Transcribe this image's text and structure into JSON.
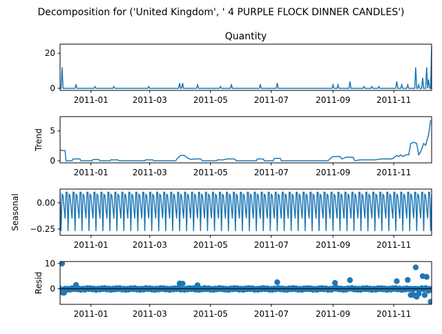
{
  "figure_title": "Decomposition for ('United Kingdom', ' 4 PURPLE FLOCK DINNER CANDLES')",
  "colors": {
    "line": "#1f77b4",
    "axis": "#000000"
  },
  "x_ticks": [
    "2011-01",
    "2011-03",
    "2011-05",
    "2011-07",
    "2011-09",
    "2011-11"
  ],
  "chart_data": [
    {
      "type": "line",
      "title": "Quantity",
      "ylabel": "",
      "xlim": [
        "2010-12-01",
        "2011-12-09"
      ],
      "ylim": [
        -1.2,
        25.2
      ],
      "yticks": [
        0,
        20
      ],
      "ytick_labels": [
        "0",
        "20"
      ],
      "baseline": 0,
      "spikes": [
        {
          "x": "2010-12-03",
          "y": 12
        },
        {
          "x": "2010-12-17",
          "y": 2
        },
        {
          "x": "2011-01-05",
          "y": 1
        },
        {
          "x": "2011-01-24",
          "y": 1
        },
        {
          "x": "2011-02-28",
          "y": 1
        },
        {
          "x": "2011-03-31",
          "y": 3
        },
        {
          "x": "2011-04-03",
          "y": 3
        },
        {
          "x": "2011-04-18",
          "y": 2
        },
        {
          "x": "2011-05-11",
          "y": 1
        },
        {
          "x": "2011-05-22",
          "y": 2
        },
        {
          "x": "2011-06-20",
          "y": 2
        },
        {
          "x": "2011-07-07",
          "y": 3
        },
        {
          "x": "2011-09-01",
          "y": 2
        },
        {
          "x": "2011-09-06",
          "y": 2
        },
        {
          "x": "2011-09-18",
          "y": 4
        },
        {
          "x": "2011-10-02",
          "y": 1
        },
        {
          "x": "2011-10-10",
          "y": 1
        },
        {
          "x": "2011-10-17",
          "y": 1
        },
        {
          "x": "2011-11-04",
          "y": 4
        },
        {
          "x": "2011-11-09",
          "y": 2
        },
        {
          "x": "2011-11-15",
          "y": 2
        },
        {
          "x": "2011-11-23",
          "y": 12
        },
        {
          "x": "2011-11-26",
          "y": 2
        },
        {
          "x": "2011-11-30",
          "y": 6
        },
        {
          "x": "2011-12-04",
          "y": 12
        },
        {
          "x": "2011-12-06",
          "y": 5
        },
        {
          "x": "2011-12-09",
          "y": 24
        }
      ]
    },
    {
      "type": "line",
      "title": "",
      "ylabel": "Trend",
      "xlim": [
        "2010-12-01",
        "2011-12-09"
      ],
      "ylim": [
        -0.35,
        7.4
      ],
      "yticks": [
        0,
        5
      ],
      "ytick_labels": [
        "0",
        "5"
      ],
      "points": [
        {
          "x": "2010-12-01",
          "y": 1.9
        },
        {
          "x": "2010-12-03",
          "y": 1.7
        },
        {
          "x": "2010-12-06",
          "y": 1.7
        },
        {
          "x": "2010-12-07",
          "y": 0.0
        },
        {
          "x": "2010-12-13",
          "y": 0.0
        },
        {
          "x": "2010-12-14",
          "y": 0.3
        },
        {
          "x": "2010-12-21",
          "y": 0.3
        },
        {
          "x": "2010-12-22",
          "y": 0.0
        },
        {
          "x": "2011-01-02",
          "y": 0.0
        },
        {
          "x": "2011-01-03",
          "y": 0.2
        },
        {
          "x": "2011-01-09",
          "y": 0.2
        },
        {
          "x": "2011-01-10",
          "y": 0.0
        },
        {
          "x": "2011-01-20",
          "y": 0.0
        },
        {
          "x": "2011-01-21",
          "y": 0.15
        },
        {
          "x": "2011-01-28",
          "y": 0.15
        },
        {
          "x": "2011-01-29",
          "y": 0.0
        },
        {
          "x": "2011-02-24",
          "y": 0.0
        },
        {
          "x": "2011-02-25",
          "y": 0.15
        },
        {
          "x": "2011-03-04",
          "y": 0.15
        },
        {
          "x": "2011-03-05",
          "y": 0.0
        },
        {
          "x": "2011-03-27",
          "y": 0.0
        },
        {
          "x": "2011-03-29",
          "y": 0.45
        },
        {
          "x": "2011-04-01",
          "y": 0.9
        },
        {
          "x": "2011-04-05",
          "y": 0.9
        },
        {
          "x": "2011-04-08",
          "y": 0.45
        },
        {
          "x": "2011-04-12",
          "y": 0.2
        },
        {
          "x": "2011-04-14",
          "y": 0.3
        },
        {
          "x": "2011-04-21",
          "y": 0.3
        },
        {
          "x": "2011-04-23",
          "y": 0.0
        },
        {
          "x": "2011-05-07",
          "y": 0.0
        },
        {
          "x": "2011-05-08",
          "y": 0.15
        },
        {
          "x": "2011-05-14",
          "y": 0.15
        },
        {
          "x": "2011-05-17",
          "y": 0.3
        },
        {
          "x": "2011-05-25",
          "y": 0.3
        },
        {
          "x": "2011-05-27",
          "y": 0.0
        },
        {
          "x": "2011-06-16",
          "y": 0.0
        },
        {
          "x": "2011-06-17",
          "y": 0.3
        },
        {
          "x": "2011-06-23",
          "y": 0.3
        },
        {
          "x": "2011-06-24",
          "y": 0.0
        },
        {
          "x": "2011-07-03",
          "y": 0.0
        },
        {
          "x": "2011-07-04",
          "y": 0.4
        },
        {
          "x": "2011-07-10",
          "y": 0.4
        },
        {
          "x": "2011-07-11",
          "y": 0.0
        },
        {
          "x": "2011-08-27",
          "y": 0.0
        },
        {
          "x": "2011-08-29",
          "y": 0.35
        },
        {
          "x": "2011-09-01",
          "y": 0.7
        },
        {
          "x": "2011-09-08",
          "y": 0.7
        },
        {
          "x": "2011-09-10",
          "y": 0.3
        },
        {
          "x": "2011-09-14",
          "y": 0.6
        },
        {
          "x": "2011-09-21",
          "y": 0.6
        },
        {
          "x": "2011-09-23",
          "y": 0.0
        },
        {
          "x": "2011-09-28",
          "y": 0.15
        },
        {
          "x": "2011-10-13",
          "y": 0.15
        },
        {
          "x": "2011-10-19",
          "y": 0.3
        },
        {
          "x": "2011-10-30",
          "y": 0.3
        },
        {
          "x": "2011-11-01",
          "y": 0.5
        },
        {
          "x": "2011-11-04",
          "y": 0.9
        },
        {
          "x": "2011-11-06",
          "y": 0.7
        },
        {
          "x": "2011-11-08",
          "y": 1.0
        },
        {
          "x": "2011-11-10",
          "y": 0.7
        },
        {
          "x": "2011-11-13",
          "y": 1.0
        },
        {
          "x": "2011-11-16",
          "y": 1.0
        },
        {
          "x": "2011-11-18",
          "y": 2.9
        },
        {
          "x": "2011-11-21",
          "y": 3.1
        },
        {
          "x": "2011-11-24",
          "y": 2.9
        },
        {
          "x": "2011-11-26",
          "y": 1.0
        },
        {
          "x": "2011-11-28",
          "y": 1.5
        },
        {
          "x": "2011-12-01",
          "y": 2.9
        },
        {
          "x": "2011-12-03",
          "y": 2.6
        },
        {
          "x": "2011-12-06",
          "y": 4.4
        },
        {
          "x": "2011-12-08",
          "y": 6.8
        }
      ]
    },
    {
      "type": "line",
      "title": "",
      "ylabel": "Seasonal",
      "xlim": [
        "2010-12-01",
        "2011-12-09"
      ],
      "ylim": [
        -0.31,
        0.13
      ],
      "yticks": [
        0.0,
        -0.25
      ],
      "ytick_labels": [
        "0.00",
        "−0.25"
      ],
      "period_days": 7,
      "weekly_pattern": [
        0.1,
        -0.27,
        0.08,
        0.07,
        -0.05,
        -0.15,
        0.1
      ]
    },
    {
      "type": "scatter",
      "title": "",
      "ylabel": "Resid",
      "xlim": [
        "2010-12-01",
        "2011-12-09"
      ],
      "ylim": [
        -6.2,
        10.8
      ],
      "yticks": [
        10,
        0
      ],
      "ytick_labels": [
        "10",
        "0"
      ],
      "outliers": [
        {
          "x": "2010-12-02",
          "y": -1.3
        },
        {
          "x": "2010-12-03",
          "y": 10
        },
        {
          "x": "2010-12-04",
          "y": -1.6
        },
        {
          "x": "2010-12-05",
          "y": -1.6
        },
        {
          "x": "2010-12-17",
          "y": 1.5
        },
        {
          "x": "2011-03-31",
          "y": 2.1
        },
        {
          "x": "2011-04-03",
          "y": 2.0
        },
        {
          "x": "2011-04-18",
          "y": 1.4
        },
        {
          "x": "2011-07-07",
          "y": 2.6
        },
        {
          "x": "2011-09-03",
          "y": 2.3
        },
        {
          "x": "2011-09-18",
          "y": 3.4
        },
        {
          "x": "2011-11-04",
          "y": 3.0
        },
        {
          "x": "2011-11-15",
          "y": 3.5
        },
        {
          "x": "2011-11-18",
          "y": -2.5
        },
        {
          "x": "2011-11-21",
          "y": -2.5
        },
        {
          "x": "2011-11-23",
          "y": 8.5
        },
        {
          "x": "2011-11-24",
          "y": -3.2
        },
        {
          "x": "2011-11-26",
          "y": -2.0
        },
        {
          "x": "2011-11-30",
          "y": 5.0
        },
        {
          "x": "2011-12-02",
          "y": -2.5
        },
        {
          "x": "2011-12-04",
          "y": 4.7
        },
        {
          "x": "2011-12-06",
          "y": -0.8
        },
        {
          "x": "2011-12-08",
          "y": -5.2
        }
      ]
    }
  ]
}
